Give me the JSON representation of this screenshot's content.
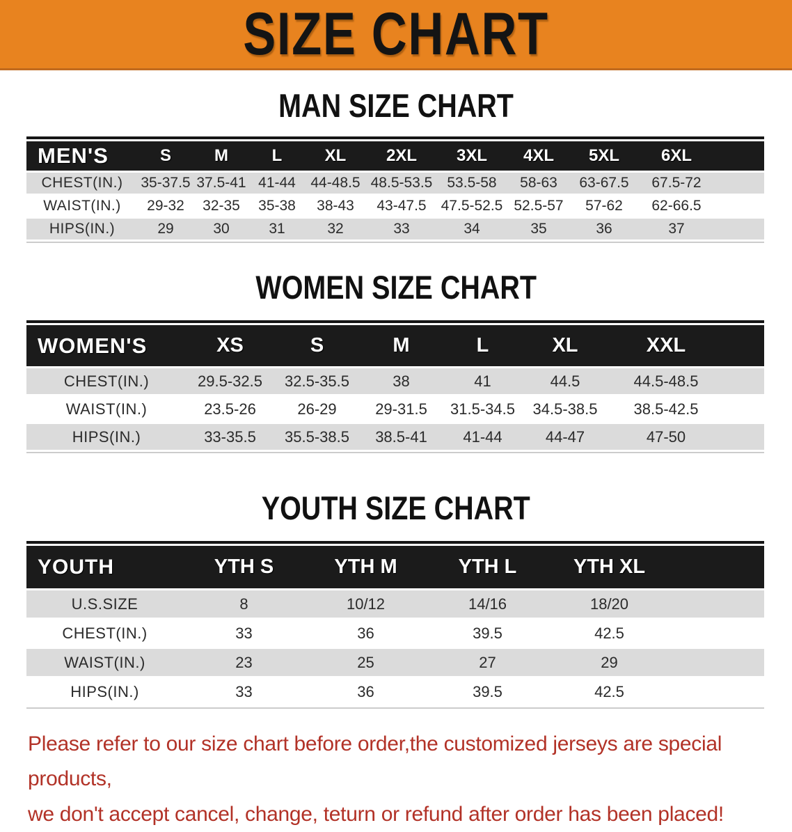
{
  "banner": {
    "title": "SIZE CHART"
  },
  "sections": {
    "man": {
      "heading": "MAN SIZE CHART"
    },
    "women": {
      "heading": "WOMEN SIZE CHART"
    },
    "youth": {
      "heading": "YOUTH SIZE CHART"
    }
  },
  "tables": {
    "men": {
      "corner": "MEN'S",
      "sizes": [
        "S",
        "M",
        "L",
        "XL",
        "2XL",
        "3XL",
        "4XL",
        "5XL",
        "6XL"
      ],
      "rows": [
        {
          "label": "CHEST(IN.)",
          "values": [
            "35-37.5",
            "37.5-41",
            "41-44",
            "44-48.5",
            "48.5-53.5",
            "53.5-58",
            "58-63",
            "63-67.5",
            "67.5-72"
          ]
        },
        {
          "label": "WAIST(IN.)",
          "values": [
            "29-32",
            "32-35",
            "35-38",
            "38-43",
            "43-47.5",
            "47.5-52.5",
            "52.5-57",
            "57-62",
            "62-66.5"
          ]
        },
        {
          "label": "HIPS(IN.)",
          "values": [
            "29",
            "30",
            "31",
            "32",
            "33",
            "34",
            "35",
            "36",
            "37"
          ]
        }
      ]
    },
    "women": {
      "corner": "WOMEN'S",
      "sizes": [
        "XS",
        "S",
        "M",
        "L",
        "XL",
        "XXL"
      ],
      "rows": [
        {
          "label": "CHEST(IN.)",
          "values": [
            "29.5-32.5",
            "32.5-35.5",
            "38",
            "41",
            "44.5",
            "44.5-48.5"
          ]
        },
        {
          "label": "WAIST(IN.)",
          "values": [
            "23.5-26",
            "26-29",
            "29-31.5",
            "31.5-34.5",
            "34.5-38.5",
            "38.5-42.5"
          ]
        },
        {
          "label": "HIPS(IN.)",
          "values": [
            "33-35.5",
            "35.5-38.5",
            "38.5-41",
            "41-44",
            "44-47",
            "47-50"
          ]
        }
      ]
    },
    "youth": {
      "corner": "YOUTH",
      "sizes": [
        "YTH S",
        "YTH M",
        "YTH L",
        "YTH XL"
      ],
      "rows": [
        {
          "label": "U.S.SIZE",
          "values": [
            "8",
            "10/12",
            "14/16",
            "18/20"
          ]
        },
        {
          "label": "CHEST(IN.)",
          "values": [
            "33",
            "36",
            "39.5",
            "42.5"
          ]
        },
        {
          "label": "WAIST(IN.)",
          "values": [
            "23",
            "25",
            "27",
            "29"
          ]
        },
        {
          "label": "HIPS(IN.)",
          "values": [
            "33",
            "36",
            "39.5",
            "42.5"
          ]
        }
      ]
    }
  },
  "disclaimer": {
    "line1": "Please refer to our size chart before order,the customized jerseys are special products,",
    "line2": "we don't accept cancel, change, teturn or refund after order has been placed!"
  },
  "colors": {
    "banner-orange": "#E8831F",
    "banner-edge": "#C06A1E",
    "header-black": "#1B1B1B",
    "stripe-gray": "#DBDBDB",
    "text-dark": "#2B2B2B",
    "disclaimer-red": "#B23227"
  }
}
